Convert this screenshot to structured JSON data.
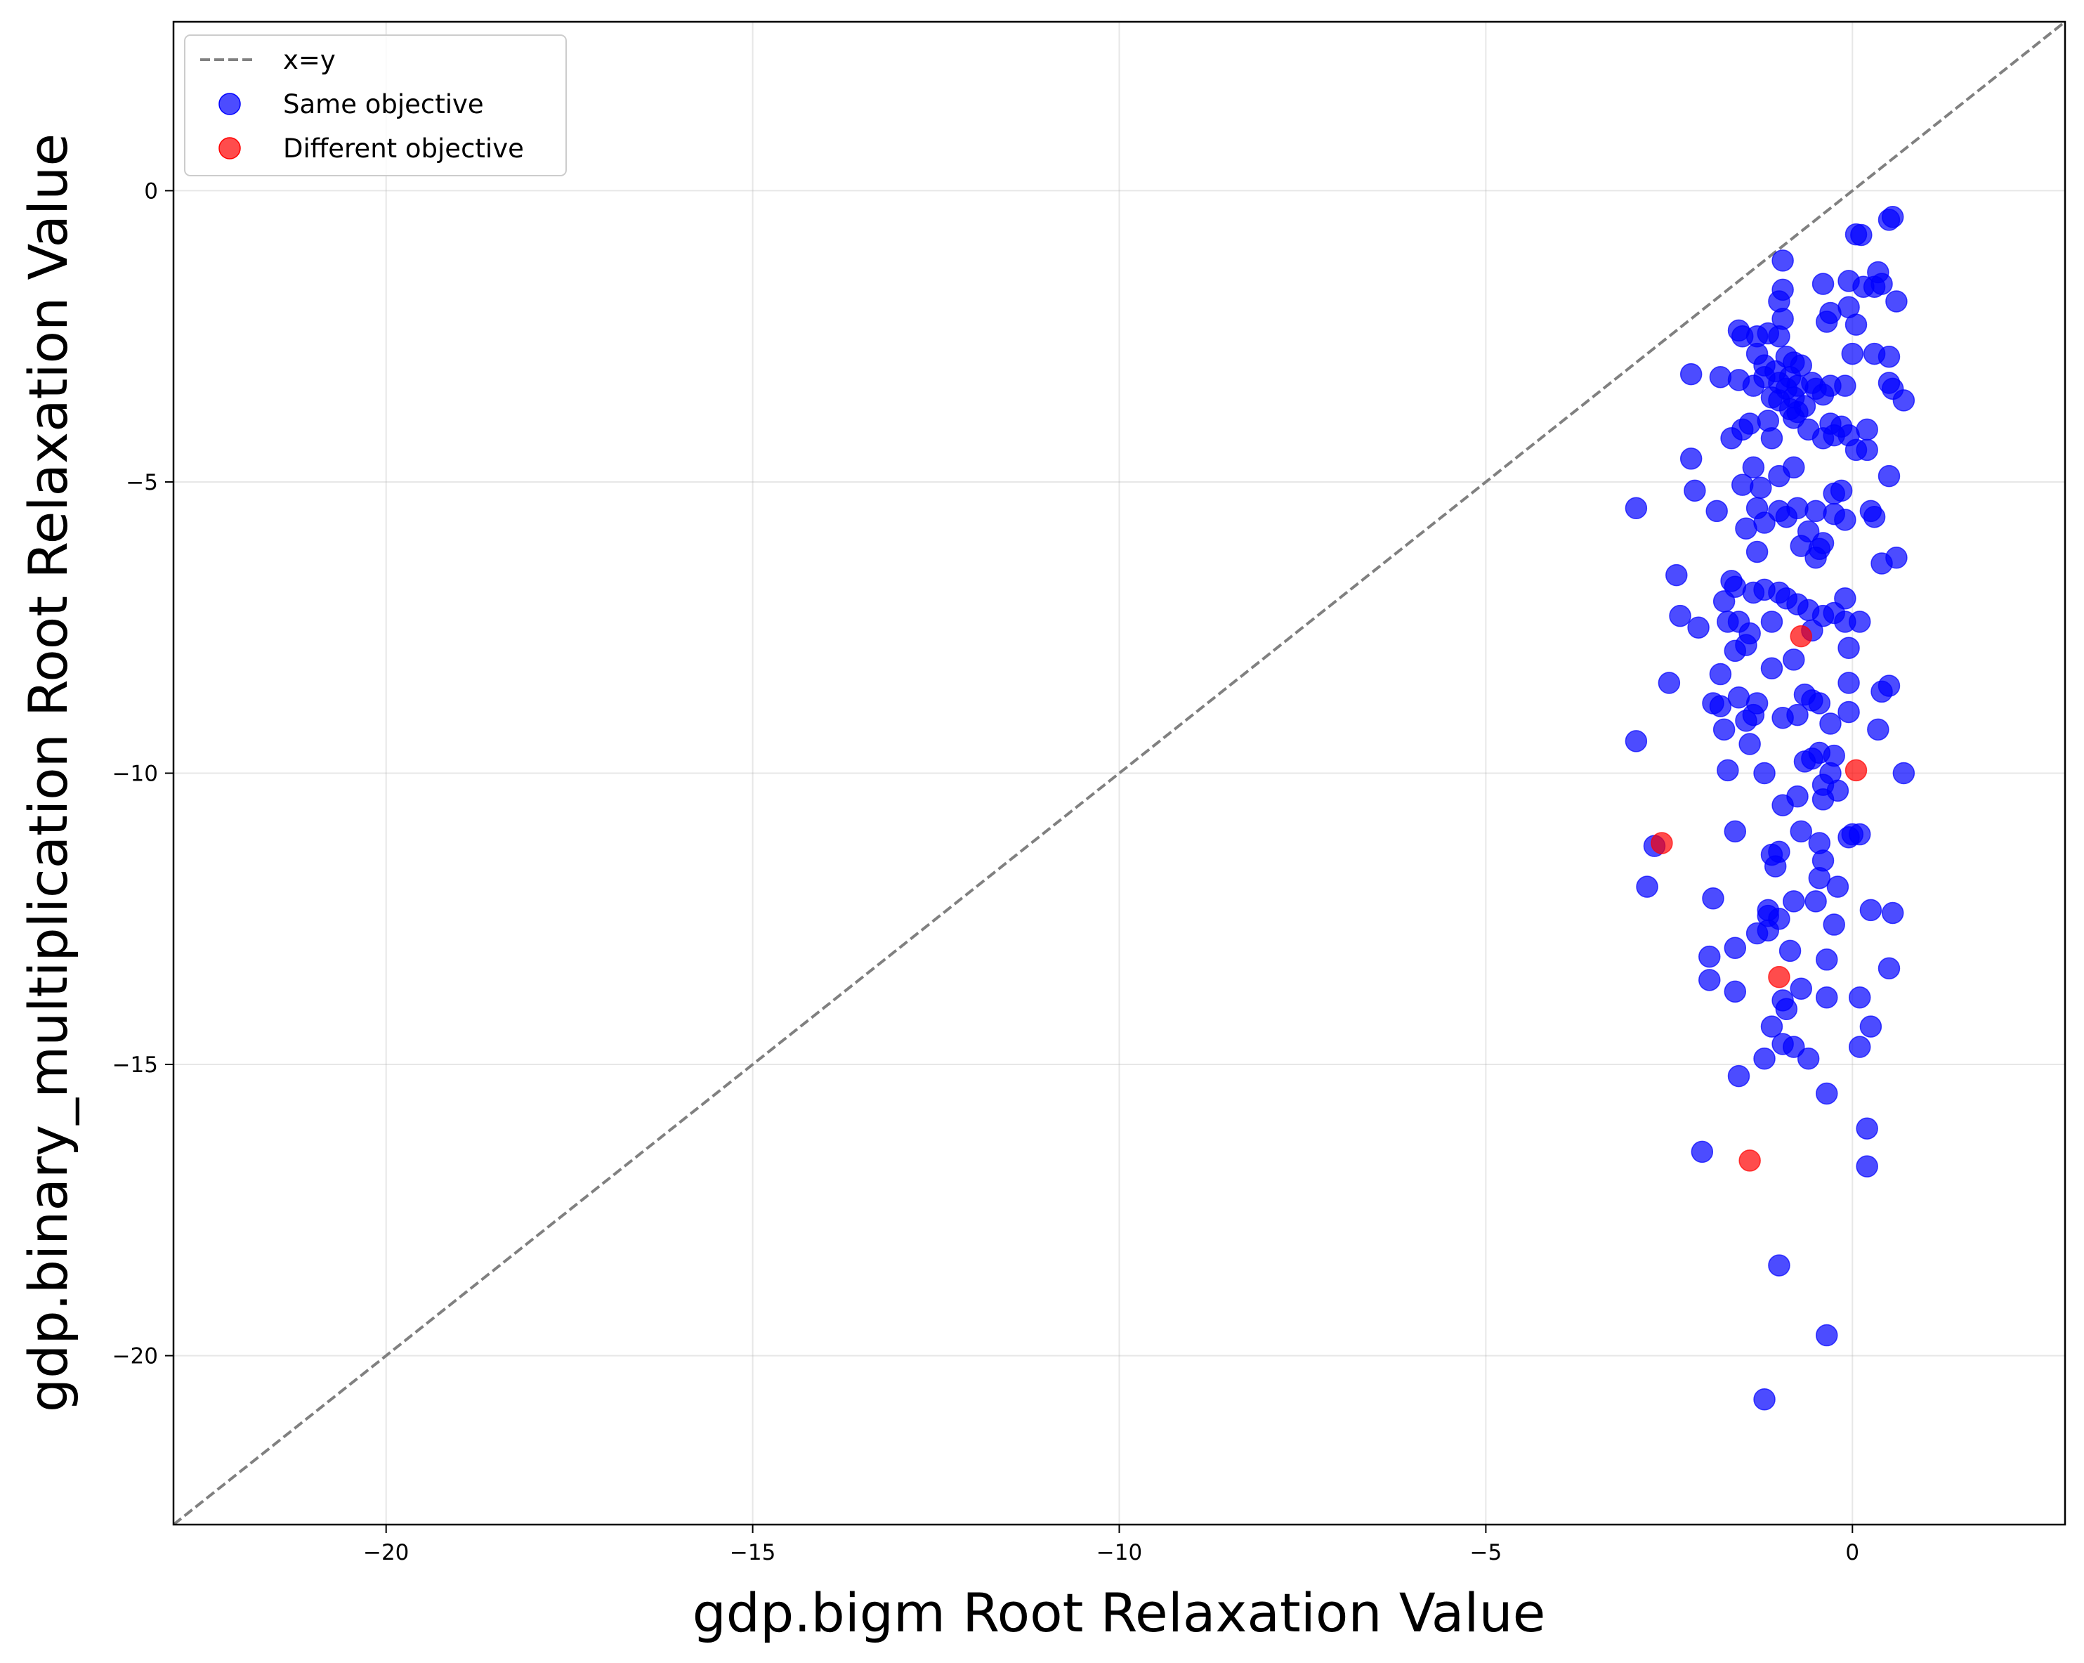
{
  "chart_data": {
    "type": "scatter",
    "title": "",
    "xlabel": "gdp.bigm Root Relaxation Value",
    "ylabel": "gdp.binary_multiplication Root Relaxation Value",
    "xlim": [
      -22.9,
      2.9
    ],
    "ylim": [
      -22.9,
      2.9
    ],
    "xticks": [
      -20,
      -15,
      -10,
      -5,
      0
    ],
    "yticks": [
      -20,
      -15,
      -10,
      -5,
      0
    ],
    "xtick_labels": [
      "−20",
      "−15",
      "−10",
      "−5",
      "0"
    ],
    "ytick_labels": [
      "−20",
      "−15",
      "−10",
      "−5",
      "0"
    ],
    "grid": true,
    "legend_position": "top-left",
    "reference_line": {
      "label": "x=y",
      "color": "#808080",
      "style": "dashed"
    },
    "series": [
      {
        "name": "Same objective",
        "color": "#0000ff",
        "alpha": 0.7,
        "points": [
          [
            0.5,
            -0.5
          ],
          [
            0.55,
            -0.45
          ],
          [
            0.05,
            -0.75
          ],
          [
            0.12,
            -0.76
          ],
          [
            0.35,
            -1.4
          ],
          [
            0.4,
            -1.6
          ],
          [
            0.3,
            -1.65
          ],
          [
            0.6,
            -1.9
          ],
          [
            -0.05,
            -1.55
          ],
          [
            0.15,
            -1.65
          ],
          [
            -0.05,
            -2.0
          ],
          [
            0.05,
            -2.3
          ],
          [
            0.3,
            -2.8
          ],
          [
            0.5,
            -2.85
          ],
          [
            0.0,
            -2.8
          ],
          [
            -0.1,
            -3.35
          ],
          [
            0.5,
            -3.3
          ],
          [
            0.55,
            -3.4
          ],
          [
            0.7,
            -3.6
          ],
          [
            -0.5,
            -3.4
          ],
          [
            -0.55,
            -3.3
          ],
          [
            -0.4,
            -3.5
          ],
          [
            -0.3,
            -3.35
          ],
          [
            -0.8,
            -3.55
          ],
          [
            -0.9,
            -3.4
          ],
          [
            -0.95,
            -1.2
          ],
          [
            -0.95,
            -1.7
          ],
          [
            -1.0,
            -1.9
          ],
          [
            -0.95,
            -2.2
          ],
          [
            -1.0,
            -2.5
          ],
          [
            -0.3,
            -2.1
          ],
          [
            -0.35,
            -2.25
          ],
          [
            -0.4,
            -1.6
          ],
          [
            -1.55,
            -2.4
          ],
          [
            -1.5,
            -2.5
          ],
          [
            -1.3,
            -2.5
          ],
          [
            -1.15,
            -2.45
          ],
          [
            -1.3,
            -2.8
          ],
          [
            -1.2,
            -3.0
          ],
          [
            -1.05,
            -3.1
          ],
          [
            -0.9,
            -2.85
          ],
          [
            -0.8,
            -2.95
          ],
          [
            -0.7,
            -3.0
          ],
          [
            -0.85,
            -3.2
          ],
          [
            -0.75,
            -3.35
          ],
          [
            -1.0,
            -3.3
          ],
          [
            -1.1,
            -3.55
          ],
          [
            -1.0,
            -3.6
          ],
          [
            -1.2,
            -3.2
          ],
          [
            -1.35,
            -3.35
          ],
          [
            -1.55,
            -3.25
          ],
          [
            -1.4,
            -4.0
          ],
          [
            -1.5,
            -4.1
          ],
          [
            -1.15,
            -3.95
          ],
          [
            -0.85,
            -3.75
          ],
          [
            -0.8,
            -3.9
          ],
          [
            -0.75,
            -3.8
          ],
          [
            -0.65,
            -3.7
          ],
          [
            -0.6,
            -4.1
          ],
          [
            -0.4,
            -4.25
          ],
          [
            -0.3,
            -4.0
          ],
          [
            -0.15,
            -4.05
          ],
          [
            -0.05,
            -4.2
          ],
          [
            0.05,
            -4.45
          ],
          [
            0.2,
            -4.1
          ],
          [
            0.2,
            -4.45
          ],
          [
            -0.25,
            -4.2
          ],
          [
            -1.1,
            -4.25
          ],
          [
            -1.65,
            -4.25
          ],
          [
            -2.2,
            -3.15
          ],
          [
            -1.8,
            -3.2
          ],
          [
            -2.2,
            -4.6
          ],
          [
            -2.15,
            -5.15
          ],
          [
            -1.85,
            -5.5
          ],
          [
            -1.5,
            -5.05
          ],
          [
            -1.25,
            -5.1
          ],
          [
            -1.3,
            -5.45
          ],
          [
            -1.0,
            -4.9
          ],
          [
            -0.8,
            -4.75
          ],
          [
            -1.35,
            -4.75
          ],
          [
            -1.45,
            -5.8
          ],
          [
            -1.3,
            -6.2
          ],
          [
            -1.2,
            -5.7
          ],
          [
            -1.0,
            -5.5
          ],
          [
            -0.9,
            -5.6
          ],
          [
            -0.75,
            -5.45
          ],
          [
            -0.5,
            -5.5
          ],
          [
            -0.25,
            -5.2
          ],
          [
            -0.15,
            -5.15
          ],
          [
            -0.6,
            -5.85
          ],
          [
            -0.7,
            -6.1
          ],
          [
            -0.5,
            -6.3
          ],
          [
            -0.45,
            -6.15
          ],
          [
            -0.4,
            -6.05
          ],
          [
            -0.25,
            -5.55
          ],
          [
            -0.1,
            -5.65
          ],
          [
            0.3,
            -5.6
          ],
          [
            0.5,
            -4.9
          ],
          [
            0.25,
            -5.5
          ],
          [
            -2.95,
            -5.45
          ],
          [
            -2.4,
            -6.6
          ],
          [
            -2.35,
            -7.3
          ],
          [
            -2.1,
            -7.5
          ],
          [
            -1.75,
            -7.05
          ],
          [
            -1.65,
            -6.7
          ],
          [
            -1.6,
            -6.8
          ],
          [
            -1.35,
            -6.9
          ],
          [
            -1.2,
            -6.85
          ],
          [
            -1.0,
            -6.9
          ],
          [
            -0.9,
            -7.0
          ],
          [
            -0.75,
            -7.1
          ],
          [
            -0.6,
            -7.2
          ],
          [
            -0.4,
            -7.3
          ],
          [
            -0.25,
            -7.25
          ],
          [
            -0.1,
            -7.0
          ],
          [
            0.1,
            -7.4
          ],
          [
            -0.1,
            -7.4
          ],
          [
            -0.05,
            -7.85
          ],
          [
            -0.55,
            -7.55
          ],
          [
            -0.8,
            -8.05
          ],
          [
            -1.1,
            -7.4
          ],
          [
            -1.4,
            -7.6
          ],
          [
            -1.45,
            -7.8
          ],
          [
            -1.6,
            -7.9
          ],
          [
            -1.55,
            -7.4
          ],
          [
            -1.7,
            -7.4
          ],
          [
            -1.1,
            -8.2
          ],
          [
            -1.8,
            -8.3
          ],
          [
            -1.9,
            -8.8
          ],
          [
            -1.8,
            -8.85
          ],
          [
            -1.55,
            -8.7
          ],
          [
            -1.3,
            -8.8
          ],
          [
            -1.35,
            -9.0
          ],
          [
            -1.45,
            -9.1
          ],
          [
            -0.95,
            -9.05
          ],
          [
            -0.75,
            -9.0
          ],
          [
            -0.65,
            -8.65
          ],
          [
            -0.55,
            -8.75
          ],
          [
            -0.45,
            -8.8
          ],
          [
            -0.3,
            -9.15
          ],
          [
            -0.05,
            -8.45
          ],
          [
            -0.05,
            -8.95
          ],
          [
            0.35,
            -9.25
          ],
          [
            0.4,
            -8.6
          ],
          [
            0.5,
            -8.5
          ],
          [
            -2.5,
            -8.45
          ],
          [
            -2.95,
            -9.45
          ],
          [
            -1.75,
            -9.25
          ],
          [
            -1.7,
            -9.95
          ],
          [
            -1.4,
            -9.5
          ],
          [
            -1.2,
            -10.0
          ],
          [
            -0.95,
            -10.55
          ],
          [
            -0.65,
            -9.8
          ],
          [
            -0.55,
            -9.75
          ],
          [
            -0.45,
            -9.65
          ],
          [
            -0.25,
            -9.7
          ],
          [
            -0.3,
            -10.0
          ],
          [
            -0.4,
            -10.2
          ],
          [
            -0.4,
            -10.45
          ],
          [
            -0.2,
            -10.3
          ],
          [
            -0.75,
            -10.4
          ],
          [
            -1.6,
            -11.0
          ],
          [
            -0.7,
            -11.0
          ],
          [
            -0.45,
            -11.2
          ],
          [
            -1.1,
            -11.4
          ],
          [
            -1.0,
            -11.35
          ],
          [
            -1.05,
            -11.6
          ],
          [
            -0.4,
            -11.5
          ],
          [
            -0.45,
            -11.8
          ],
          [
            -0.2,
            -11.95
          ],
          [
            0.0,
            -11.05
          ],
          [
            0.1,
            -11.05
          ],
          [
            -0.05,
            -11.1
          ],
          [
            -2.7,
            -11.25
          ],
          [
            -2.8,
            -11.95
          ],
          [
            -1.9,
            -12.15
          ],
          [
            -1.15,
            -12.35
          ],
          [
            -1.15,
            -12.45
          ],
          [
            -1.0,
            -12.5
          ],
          [
            -0.8,
            -12.2
          ],
          [
            -0.5,
            -12.2
          ],
          [
            -0.25,
            -12.6
          ],
          [
            -1.3,
            -12.75
          ],
          [
            -1.15,
            -12.7
          ],
          [
            -1.6,
            -13.0
          ],
          [
            -0.85,
            -13.05
          ],
          [
            -0.35,
            -13.2
          ],
          [
            0.25,
            -12.35
          ],
          [
            0.55,
            -12.4
          ],
          [
            0.5,
            -13.35
          ],
          [
            -1.95,
            -13.15
          ],
          [
            -1.95,
            -13.55
          ],
          [
            -1.6,
            -13.75
          ],
          [
            -0.7,
            -13.7
          ],
          [
            -0.95,
            -13.9
          ],
          [
            -0.9,
            -14.05
          ],
          [
            -0.35,
            -13.85
          ],
          [
            0.1,
            -13.85
          ],
          [
            0.25,
            -14.35
          ],
          [
            -1.1,
            -14.35
          ],
          [
            -0.95,
            -14.65
          ],
          [
            -0.8,
            -14.7
          ],
          [
            -0.6,
            -14.9
          ],
          [
            -1.2,
            -14.9
          ],
          [
            0.1,
            -14.7
          ],
          [
            -1.55,
            -15.2
          ],
          [
            -0.35,
            -15.5
          ],
          [
            0.2,
            -16.1
          ],
          [
            0.2,
            -16.75
          ],
          [
            -2.05,
            -16.5
          ],
          [
            -1.0,
            -18.45
          ],
          [
            -0.35,
            -19.65
          ],
          [
            -1.2,
            -20.75
          ],
          [
            0.7,
            -10.0
          ],
          [
            0.4,
            -6.4
          ],
          [
            0.6,
            -6.3
          ]
        ]
      },
      {
        "name": "Different objective",
        "color": "#ff0000",
        "alpha": 0.7,
        "points": [
          [
            -0.7,
            -7.65
          ],
          [
            0.05,
            -9.95
          ],
          [
            -2.6,
            -11.2
          ],
          [
            -1.0,
            -13.5
          ],
          [
            -1.4,
            -16.65
          ]
        ]
      }
    ]
  }
}
